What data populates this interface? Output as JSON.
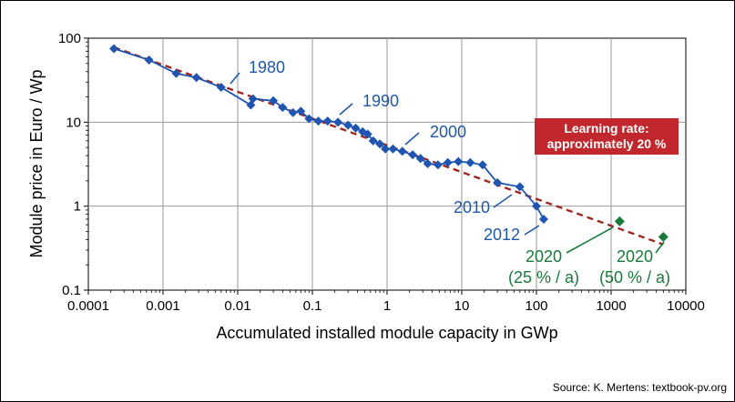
{
  "chart_data": {
    "type": "line",
    "x_scale": "log",
    "y_scale": "log",
    "xlabel": "Accumulated installed module capacity in GWp",
    "ylabel": "Module price in Euro / Wp",
    "xlim": [
      0.0001,
      10000
    ],
    "ylim": [
      0.1,
      100
    ],
    "x_ticks": [
      "0.0001",
      "0.001",
      "0.01",
      "0.1",
      "1",
      "10",
      "100",
      "1000",
      "10000"
    ],
    "y_ticks": [
      "0.1",
      "1",
      "10",
      "100"
    ],
    "grid": true,
    "series": [
      {
        "color": "#1f55b0",
        "marker": "diamond",
        "points": [
          [
            0.00022,
            75
          ],
          [
            0.00065,
            55
          ],
          [
            0.0015,
            38
          ],
          [
            0.0028,
            34
          ],
          [
            0.006,
            26
          ],
          [
            0.015,
            16
          ],
          [
            0.016,
            19
          ],
          [
            0.03,
            18
          ],
          [
            0.04,
            15
          ],
          [
            0.055,
            13
          ],
          [
            0.07,
            13.5
          ],
          [
            0.09,
            11
          ],
          [
            0.12,
            10.3
          ],
          [
            0.16,
            10.3
          ],
          [
            0.22,
            10
          ],
          [
            0.3,
            9.2
          ],
          [
            0.38,
            8.5
          ],
          [
            0.47,
            7.7
          ],
          [
            0.55,
            7.2
          ],
          [
            0.65,
            6
          ],
          [
            0.8,
            5.5
          ],
          [
            0.95,
            4.8
          ],
          [
            1.2,
            4.8
          ],
          [
            1.6,
            4.5
          ],
          [
            2.2,
            4.1
          ],
          [
            2.8,
            3.7
          ],
          [
            3.5,
            3.2
          ],
          [
            4.8,
            3.1
          ],
          [
            6.5,
            3.3
          ],
          [
            9,
            3.4
          ],
          [
            13,
            3.3
          ],
          [
            19,
            3.1
          ],
          [
            30,
            1.9
          ],
          [
            60,
            1.7
          ],
          [
            100,
            1.0
          ],
          [
            125,
            0.7
          ]
        ]
      },
      {
        "color": "#a0281f",
        "style": "dashed",
        "points": [
          [
            0.00022,
            78
          ],
          [
            5000,
            0.35
          ]
        ]
      },
      {
        "color": "#1a7a3a",
        "marker": "diamond",
        "points": [
          [
            1300,
            0.66
          ],
          [
            5000,
            0.43
          ]
        ]
      }
    ],
    "annotations": [
      {
        "text": "1980",
        "color": "#2157a8",
        "x": 0.015,
        "y": 18
      },
      {
        "text": "1990",
        "color": "#2157a8",
        "x": 0.2,
        "y": 10
      },
      {
        "text": "2000",
        "color": "#2157a8",
        "x": 1.0,
        "y": 5
      },
      {
        "text": "2010",
        "color": "#2157a8",
        "x": 55,
        "y": 1.6
      },
      {
        "text": "2012",
        "color": "#2157a8",
        "x": 120,
        "y": 0.72
      },
      {
        "text": "2020",
        "line2": "(25 % / a)",
        "color": "#1a7a3a",
        "x": 1300,
        "y": 0.66
      },
      {
        "text": "2020",
        "line2": "(50 % / a)",
        "color": "#1a7a3a",
        "x": 5000,
        "y": 0.43
      }
    ],
    "callout": {
      "line1": "Learning rate:",
      "line2": "approximately 20 %",
      "background": "#c0282d"
    }
  },
  "source": "Source: K. Mertens: textbook-pv.org"
}
